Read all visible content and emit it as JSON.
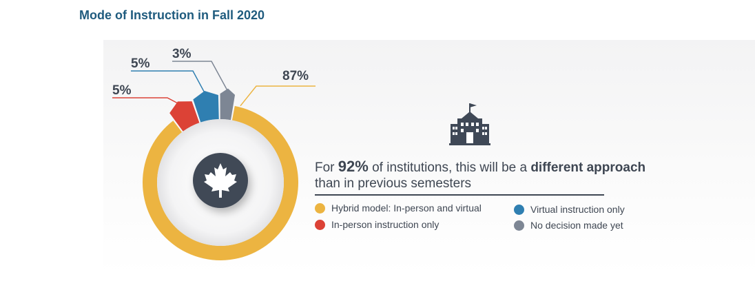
{
  "title": "Mode of Instruction in Fall 2020",
  "chart_data": {
    "type": "pie",
    "title": "Mode of Instruction in Fall 2020",
    "series": [
      {
        "name": "Hybrid model: In-person and virtual",
        "value": 87,
        "label": "87%",
        "color": "#ecb441"
      },
      {
        "name": "In-person instruction only",
        "value": 5,
        "label": "5%",
        "color": "#dc4236"
      },
      {
        "name": "Virtual instruction only",
        "value": 5,
        "label": "5%",
        "color": "#2f7fb1"
      },
      {
        "name": "No decision made yet",
        "value": 3,
        "label": "3%",
        "color": "#7d8694"
      }
    ],
    "center_icon": "maple-leaf-icon"
  },
  "statement": {
    "prefix": "For ",
    "percent": "92%",
    "middle": " of institutions, this will be a ",
    "emphasis": "different approach",
    "line2": "than in previous semesters"
  },
  "legend": [
    {
      "label": "Hybrid model: In-person and virtual",
      "color": "#ecb441"
    },
    {
      "label": "In-person instruction only",
      "color": "#dc4236"
    },
    {
      "label": "Virtual instruction only",
      "color": "#2f7fb1"
    },
    {
      "label": "No decision made yet",
      "color": "#7d8694"
    }
  ],
  "icons": {
    "building": "school-building-icon",
    "center": "maple-leaf-icon"
  }
}
